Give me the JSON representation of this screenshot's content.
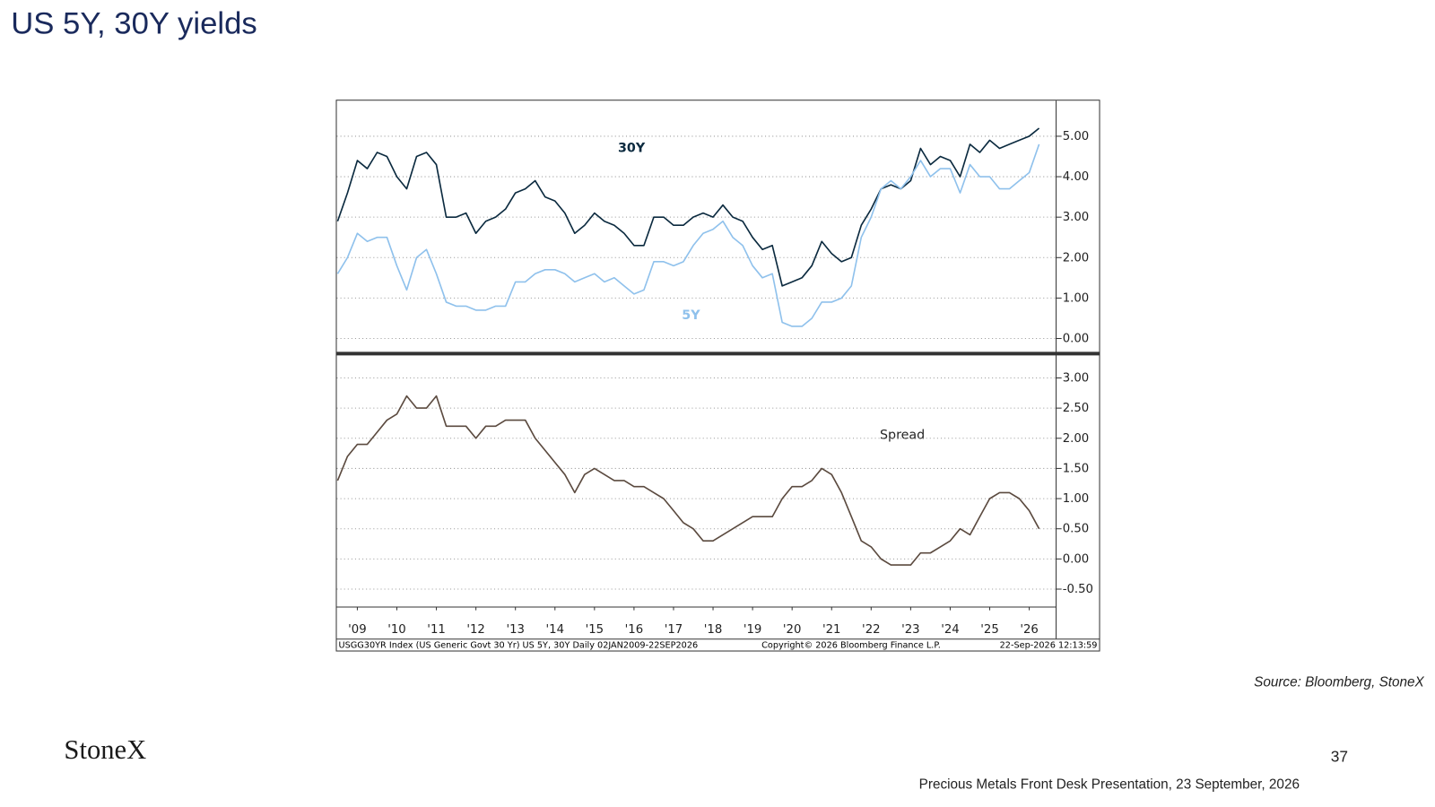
{
  "title": "US 5Y, 30Y yields",
  "source": "Source: Bloomberg, StoneX",
  "logo": "StoneX",
  "page_number": "37",
  "footer": "Precious Metals Front Desk Presentation, 23 September, 2026",
  "chart_footer": {
    "left": "USGG30YR Index (US Generic Govt 30 Yr) US 5Y, 30Y Daily 02JAN2009-22SEP2026",
    "center": "Copyright© 2026 Bloomberg Finance L.P.",
    "right": "22-Sep-2026 12:13:59"
  },
  "chart_data": [
    {
      "type": "line",
      "annotations": [
        "30Y",
        "5Y"
      ],
      "grid": true,
      "x": [
        2009,
        2009.25,
        2009.5,
        2009.75,
        2010,
        2010.25,
        2010.5,
        2010.75,
        2011,
        2011.25,
        2011.5,
        2011.75,
        2012,
        2012.25,
        2012.5,
        2012.75,
        2013,
        2013.25,
        2013.5,
        2013.75,
        2014,
        2014.25,
        2014.5,
        2014.75,
        2015,
        2015.25,
        2015.5,
        2015.75,
        2016,
        2016.25,
        2016.5,
        2016.75,
        2017,
        2017.25,
        2017.5,
        2017.75,
        2018,
        2018.25,
        2018.5,
        2018.75,
        2019,
        2019.25,
        2019.5,
        2019.75,
        2020,
        2020.25,
        2020.5,
        2020.75,
        2021,
        2021.25,
        2021.5,
        2021.75,
        2022,
        2022.25,
        2022.5,
        2022.75,
        2023,
        2023.25,
        2023.5,
        2023.75,
        2024,
        2024.25,
        2024.5,
        2024.75,
        2025,
        2025.25,
        2025.5,
        2025.75,
        2026,
        2026.25,
        2026.5,
        2026.75
      ],
      "xlim": [
        2008.98,
        2027.18
      ],
      "ylim": [
        -0.34,
        5.88
      ],
      "yticks": [
        {
          "value": 0,
          "label": "0.00"
        },
        {
          "value": 1,
          "label": "1.00"
        },
        {
          "value": 2,
          "label": "2.00"
        },
        {
          "value": 3,
          "label": "3.00"
        },
        {
          "value": 4,
          "label": "4.00"
        },
        {
          "value": 5,
          "label": "5.00"
        }
      ],
      "series": [
        {
          "name": "30Y",
          "color": "#0b2a3f",
          "values": [
            2.9,
            3.6,
            4.4,
            4.2,
            4.6,
            4.5,
            4.0,
            3.7,
            4.5,
            4.6,
            4.3,
            3.0,
            3.0,
            3.1,
            2.6,
            2.9,
            3.0,
            3.2,
            3.6,
            3.7,
            3.9,
            3.5,
            3.4,
            3.1,
            2.6,
            2.8,
            3.1,
            2.9,
            2.8,
            2.6,
            2.3,
            2.3,
            3.0,
            3.0,
            2.8,
            2.8,
            3.0,
            3.1,
            3.0,
            3.3,
            3.0,
            2.9,
            2.5,
            2.2,
            2.3,
            1.3,
            1.4,
            1.5,
            1.8,
            2.4,
            2.1,
            1.9,
            2.0,
            2.8,
            3.2,
            3.7,
            3.8,
            3.7,
            3.9,
            4.7,
            4.3,
            4.5,
            4.4,
            4.0,
            4.8,
            4.6,
            4.9,
            4.7,
            4.8,
            4.9,
            5.0,
            5.2
          ]
        },
        {
          "name": "5Y",
          "color": "#8fc1ec",
          "values": [
            1.6,
            2.0,
            2.6,
            2.4,
            2.5,
            2.5,
            1.8,
            1.2,
            2.0,
            2.2,
            1.6,
            0.9,
            0.8,
            0.8,
            0.7,
            0.7,
            0.8,
            0.8,
            1.4,
            1.4,
            1.6,
            1.7,
            1.7,
            1.6,
            1.4,
            1.5,
            1.6,
            1.4,
            1.5,
            1.3,
            1.1,
            1.2,
            1.9,
            1.9,
            1.8,
            1.9,
            2.3,
            2.6,
            2.7,
            2.9,
            2.5,
            2.3,
            1.8,
            1.5,
            1.6,
            0.4,
            0.3,
            0.3,
            0.5,
            0.9,
            0.9,
            1.0,
            1.3,
            2.5,
            3.0,
            3.7,
            3.9,
            3.7,
            4.0,
            4.4,
            4.0,
            4.2,
            4.2,
            3.6,
            4.3,
            4.0,
            4.0,
            3.7,
            3.7,
            3.9,
            4.1,
            4.8
          ]
        }
      ]
    },
    {
      "type": "line",
      "annotations": [
        "Spread"
      ],
      "grid": true,
      "x": [
        2009,
        2009.25,
        2009.5,
        2009.75,
        2010,
        2010.25,
        2010.5,
        2010.75,
        2011,
        2011.25,
        2011.5,
        2011.75,
        2012,
        2012.25,
        2012.5,
        2012.75,
        2013,
        2013.25,
        2013.5,
        2013.75,
        2014,
        2014.25,
        2014.5,
        2014.75,
        2015,
        2015.25,
        2015.5,
        2015.75,
        2016,
        2016.25,
        2016.5,
        2016.75,
        2017,
        2017.25,
        2017.5,
        2017.75,
        2018,
        2018.25,
        2018.5,
        2018.75,
        2019,
        2019.25,
        2019.5,
        2019.75,
        2020,
        2020.25,
        2020.5,
        2020.75,
        2021,
        2021.25,
        2021.5,
        2021.75,
        2022,
        2022.25,
        2022.5,
        2022.75,
        2023,
        2023.25,
        2023.5,
        2023.75,
        2024,
        2024.25,
        2024.5,
        2024.75,
        2025,
        2025.25,
        2025.5,
        2025.75,
        2026,
        2026.25,
        2026.5,
        2026.75
      ],
      "xlim": [
        2008.98,
        2027.18
      ],
      "xticks": [
        {
          "value": 2009.5,
          "label": "'09"
        },
        {
          "value": 2010.5,
          "label": "'10"
        },
        {
          "value": 2011.5,
          "label": "'11"
        },
        {
          "value": 2012.5,
          "label": "'12"
        },
        {
          "value": 2013.5,
          "label": "'13"
        },
        {
          "value": 2014.5,
          "label": "'14"
        },
        {
          "value": 2015.5,
          "label": "'15"
        },
        {
          "value": 2016.5,
          "label": "'16"
        },
        {
          "value": 2017.5,
          "label": "'17"
        },
        {
          "value": 2018.5,
          "label": "'18"
        },
        {
          "value": 2019.5,
          "label": "'19"
        },
        {
          "value": 2020.5,
          "label": "'20"
        },
        {
          "value": 2021.5,
          "label": "'21"
        },
        {
          "value": 2022.5,
          "label": "'22"
        },
        {
          "value": 2023.5,
          "label": "'23"
        },
        {
          "value": 2024.5,
          "label": "'24"
        },
        {
          "value": 2025.5,
          "label": "'25"
        },
        {
          "value": 2026.5,
          "label": "'26"
        }
      ],
      "ylim": [
        -0.79,
        3.38
      ],
      "yticks": [
        {
          "value": -0.5,
          "label": "-0.50"
        },
        {
          "value": 0,
          "label": "0.00"
        },
        {
          "value": 0.5,
          "label": "0.50"
        },
        {
          "value": 1,
          "label": "1.00"
        },
        {
          "value": 1.5,
          "label": "1.50"
        },
        {
          "value": 2,
          "label": "2.00"
        },
        {
          "value": 2.5,
          "label": "2.50"
        },
        {
          "value": 3,
          "label": "3.00"
        }
      ],
      "series": [
        {
          "name": "Spread",
          "color": "#5b4a3f",
          "values": [
            1.3,
            1.7,
            1.9,
            1.9,
            2.1,
            2.3,
            2.4,
            2.7,
            2.5,
            2.5,
            2.7,
            2.2,
            2.2,
            2.2,
            2.0,
            2.2,
            2.2,
            2.3,
            2.3,
            2.3,
            2.0,
            1.8,
            1.6,
            1.4,
            1.1,
            1.4,
            1.5,
            1.4,
            1.3,
            1.3,
            1.2,
            1.2,
            1.1,
            1.0,
            0.8,
            0.6,
            0.5,
            0.3,
            0.3,
            0.4,
            0.5,
            0.6,
            0.7,
            0.7,
            0.7,
            1.0,
            1.2,
            1.2,
            1.3,
            1.5,
            1.4,
            1.1,
            0.7,
            0.3,
            0.2,
            0.0,
            -0.1,
            -0.1,
            -0.1,
            0.1,
            0.1,
            0.2,
            0.3,
            0.5,
            0.4,
            0.7,
            1.0,
            1.1,
            1.1,
            1.0,
            0.8,
            0.5
          ]
        }
      ]
    }
  ]
}
